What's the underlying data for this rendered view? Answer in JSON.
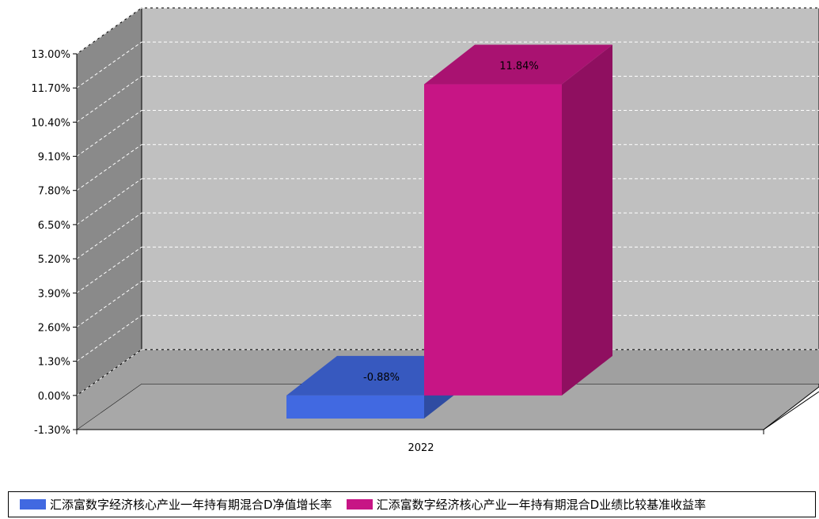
{
  "chart_data": {
    "type": "bar",
    "categories": [
      "2022"
    ],
    "series": [
      {
        "name": "汇添富数字经济核心产业一年持有期混合D净值增长率",
        "values": [
          -0.88
        ],
        "labels": [
          "-0.88%"
        ],
        "color": "#4169E1"
      },
      {
        "name": "汇添富数字经济核心产业一年持有期混合D业绩比较基准收益率",
        "values": [
          11.84
        ],
        "labels": [
          "11.84%"
        ],
        "color": "#C71585"
      }
    ],
    "yticks": [
      13.0,
      11.7,
      10.4,
      9.1,
      7.8,
      6.5,
      5.2,
      3.9,
      2.6,
      1.3,
      0.0,
      -1.3
    ],
    "ytick_labels": [
      "13.00%",
      "11.70%",
      "10.40%",
      "9.10%",
      "7.80%",
      "6.50%",
      "5.20%",
      "3.90%",
      "2.60%",
      "1.30%",
      "0.00%",
      "-1.30%"
    ],
    "ylim": [
      -1.3,
      13.0
    ],
    "grid": true,
    "legend_position": "bottom",
    "style": "3d"
  }
}
